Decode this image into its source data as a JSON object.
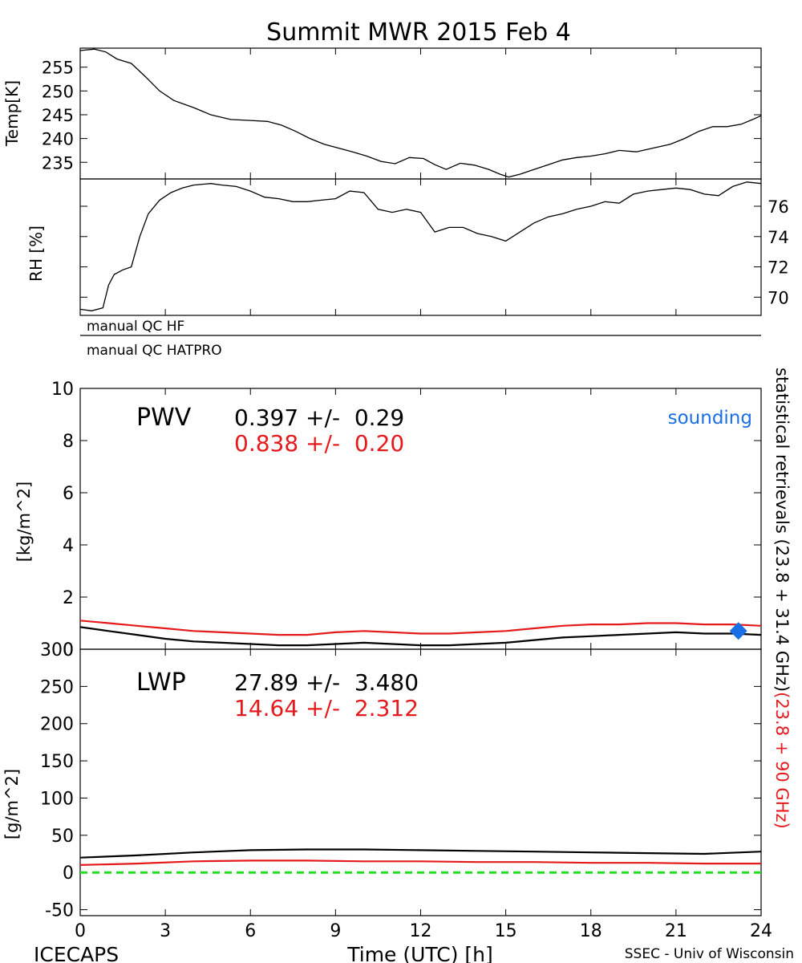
{
  "title": "Summit MWR 2015 Feb  4",
  "footer": {
    "left": "ICECAPS",
    "center": "Time (UTC) [h]",
    "right": "SSEC - Univ of Wisconsin"
  },
  "qc": {
    "hf": "manual QC HF",
    "hatpro": "manual QC HATPRO"
  },
  "right_label": {
    "black": "statistical retrievals (23.8 + 31.4 GHz)",
    "red": "(23.8 + 90 GHz)"
  },
  "colors": {
    "black": "#000000",
    "red": "#e41a1c",
    "blue": "#1a6ee6",
    "green": "#22dd22"
  },
  "chart_data": [
    {
      "type": "line",
      "id": "temp",
      "ylabel": "Temp[K]",
      "ylim": [
        231.5,
        259
      ],
      "yticks": [
        235,
        240,
        245,
        250,
        255
      ],
      "xlim": [
        0,
        24
      ],
      "x": [
        0,
        0.5,
        0.9,
        1.3,
        1.8,
        2.3,
        2.8,
        3.3,
        4,
        4.6,
        5.3,
        6,
        6.6,
        7.1,
        7.6,
        8.1,
        8.6,
        9.1,
        9.6,
        10.1,
        10.6,
        11.1,
        11.6,
        12.1,
        12.5,
        12.9,
        13.4,
        13.9,
        14.4,
        14.8,
        15.1,
        15.5,
        16,
        16.5,
        17,
        17.5,
        18,
        18.5,
        19,
        19.6,
        20.2,
        20.8,
        21.3,
        21.8,
        22.3,
        22.8,
        23.3,
        23.7,
        24
      ],
      "y": [
        258.5,
        258.8,
        258.2,
        256.7,
        255.8,
        253,
        250,
        248,
        246.5,
        245,
        244,
        243.8,
        243.6,
        242.8,
        241.5,
        240,
        238.8,
        238,
        237.2,
        236.3,
        235.2,
        234.7,
        236,
        235.8,
        234.5,
        233.5,
        234.8,
        234.4,
        233.5,
        232.5,
        231.9,
        232.5,
        233.5,
        234.5,
        235.5,
        236,
        236.3,
        236.8,
        237.5,
        237.2,
        238,
        238.8,
        240,
        241.5,
        242.5,
        242.5,
        243,
        244,
        244.8
      ]
    },
    {
      "type": "line",
      "id": "rh",
      "ylabel": "RH [%]",
      "ylim": [
        68.8,
        77.8
      ],
      "yticks": [
        70,
        72,
        74,
        76
      ],
      "xlim": [
        0,
        24
      ],
      "x": [
        0,
        0.4,
        0.8,
        1,
        1.2,
        1.5,
        1.8,
        2.1,
        2.4,
        2.8,
        3.2,
        3.6,
        4,
        4.6,
        5,
        5.5,
        6,
        6.5,
        7,
        7.5,
        8,
        8.5,
        9,
        9.5,
        10,
        10.5,
        11,
        11.5,
        12,
        12.5,
        13,
        13.5,
        14,
        14.5,
        15,
        15.5,
        16,
        16.5,
        17,
        17.5,
        18,
        18.5,
        19,
        19.5,
        20,
        20.5,
        21,
        21.5,
        22,
        22.5,
        23,
        23.5,
        24
      ],
      "y": [
        69.2,
        69.1,
        69.3,
        70.8,
        71.5,
        71.8,
        72,
        74,
        75.5,
        76.4,
        76.9,
        77.2,
        77.4,
        77.5,
        77.4,
        77.3,
        77,
        76.6,
        76.5,
        76.3,
        76.3,
        76.4,
        76.5,
        77,
        76.9,
        75.8,
        75.6,
        75.8,
        75.6,
        74.3,
        74.6,
        74.6,
        74.2,
        74,
        73.7,
        74.3,
        74.9,
        75.3,
        75.5,
        75.8,
        76,
        76.3,
        76.2,
        76.8,
        77,
        77.1,
        77.2,
        77.1,
        76.8,
        76.7,
        77.3,
        77.6,
        77.5
      ]
    },
    {
      "type": "line",
      "id": "pwv",
      "label": "PWV",
      "ylabel": "[kg/m^2]",
      "ylim": [
        0,
        10
      ],
      "yticks": [
        0,
        2,
        4,
        6,
        8,
        10
      ],
      "xlim": [
        0,
        24
      ],
      "stats": [
        {
          "text": "0.397 +/-  0.29",
          "color": "black"
        },
        {
          "text": "0.838 +/-  0.20",
          "color": "red"
        }
      ],
      "x": [
        0,
        1,
        2,
        3,
        4,
        5,
        6,
        7,
        8,
        9,
        10,
        11,
        12,
        13,
        14,
        15,
        16,
        17,
        18,
        19,
        20,
        21,
        22,
        23,
        24
      ],
      "series": [
        {
          "color": "red",
          "values": [
            1.1,
            1.0,
            0.9,
            0.8,
            0.7,
            0.65,
            0.6,
            0.55,
            0.55,
            0.65,
            0.7,
            0.65,
            0.6,
            0.6,
            0.65,
            0.7,
            0.8,
            0.9,
            0.95,
            0.95,
            1.0,
            1.0,
            0.95,
            0.95,
            0.9
          ]
        },
        {
          "color": "black",
          "values": [
            0.85,
            0.7,
            0.55,
            0.4,
            0.3,
            0.25,
            0.2,
            0.15,
            0.15,
            0.2,
            0.25,
            0.2,
            0.15,
            0.15,
            0.2,
            0.25,
            0.35,
            0.45,
            0.5,
            0.55,
            0.6,
            0.65,
            0.6,
            0.6,
            0.55
          ]
        }
      ],
      "sounding": {
        "label": "sounding",
        "x": 23.2,
        "y": 0.7
      }
    },
    {
      "type": "line",
      "id": "lwp",
      "label": "LWP",
      "ylabel": "[g/m^2]",
      "ylim": [
        -58,
        300
      ],
      "yticks": [
        -50,
        0,
        50,
        100,
        150,
        200,
        250,
        300
      ],
      "xlim": [
        0,
        24
      ],
      "xticks": [
        0,
        3,
        6,
        9,
        12,
        15,
        18,
        21,
        24
      ],
      "stats": [
        {
          "text": "27.89 +/-  3.480",
          "color": "black"
        },
        {
          "text": "14.64 +/-  2.312",
          "color": "red"
        }
      ],
      "x": [
        0,
        2,
        4,
        6,
        8,
        10,
        12,
        14,
        16,
        18,
        20,
        22,
        24
      ],
      "series": [
        {
          "color": "black",
          "values": [
            20,
            23,
            27,
            30,
            31,
            31,
            30,
            29,
            28,
            27,
            26,
            25,
            28
          ]
        },
        {
          "color": "red",
          "values": [
            10,
            12,
            15,
            16,
            16,
            15,
            15,
            14,
            14,
            13,
            13,
            12,
            12
          ]
        },
        {
          "color": "green",
          "values": [
            0,
            0,
            0,
            0,
            0,
            0,
            0,
            0,
            0,
            0,
            0,
            0,
            0
          ]
        }
      ]
    }
  ]
}
